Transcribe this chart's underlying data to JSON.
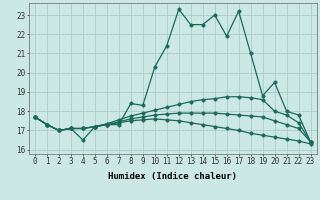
{
  "xlabel": "Humidex (Indice chaleur)",
  "bg_color": "#cce8e4",
  "grid_color": "#aaccc8",
  "line_color": "#1a6a5a",
  "xlim": [
    -0.5,
    23.5
  ],
  "ylim": [
    15.8,
    23.6
  ],
  "yticks": [
    16,
    17,
    18,
    19,
    20,
    21,
    22,
    23
  ],
  "xticks": [
    0,
    1,
    2,
    3,
    4,
    5,
    6,
    7,
    8,
    9,
    10,
    11,
    12,
    13,
    14,
    15,
    16,
    17,
    18,
    19,
    20,
    21,
    22,
    23
  ],
  "series": [
    [
      17.7,
      17.3,
      17.0,
      17.1,
      16.5,
      17.2,
      17.3,
      17.3,
      18.4,
      18.3,
      20.3,
      21.4,
      23.3,
      22.5,
      22.5,
      23.0,
      21.9,
      23.2,
      21.0,
      18.8,
      19.5,
      18.0,
      17.8,
      16.4
    ],
    [
      17.7,
      17.3,
      17.0,
      17.1,
      17.1,
      17.2,
      17.35,
      17.55,
      17.75,
      17.9,
      18.05,
      18.2,
      18.35,
      18.5,
      18.6,
      18.65,
      18.75,
      18.75,
      18.7,
      18.6,
      18.0,
      17.8,
      17.4,
      16.4
    ],
    [
      17.7,
      17.3,
      17.0,
      17.1,
      17.1,
      17.2,
      17.3,
      17.45,
      17.6,
      17.7,
      17.8,
      17.85,
      17.9,
      17.9,
      17.9,
      17.9,
      17.85,
      17.8,
      17.75,
      17.7,
      17.5,
      17.3,
      17.1,
      16.4
    ],
    [
      17.7,
      17.3,
      17.0,
      17.1,
      17.1,
      17.2,
      17.3,
      17.4,
      17.5,
      17.55,
      17.6,
      17.55,
      17.5,
      17.4,
      17.3,
      17.2,
      17.1,
      17.0,
      16.85,
      16.75,
      16.65,
      16.55,
      16.45,
      16.3
    ]
  ],
  "marker_size": 2.5,
  "line_width": 0.9,
  "xlabel_fontsize": 6.5,
  "tick_fontsize": 5.5
}
